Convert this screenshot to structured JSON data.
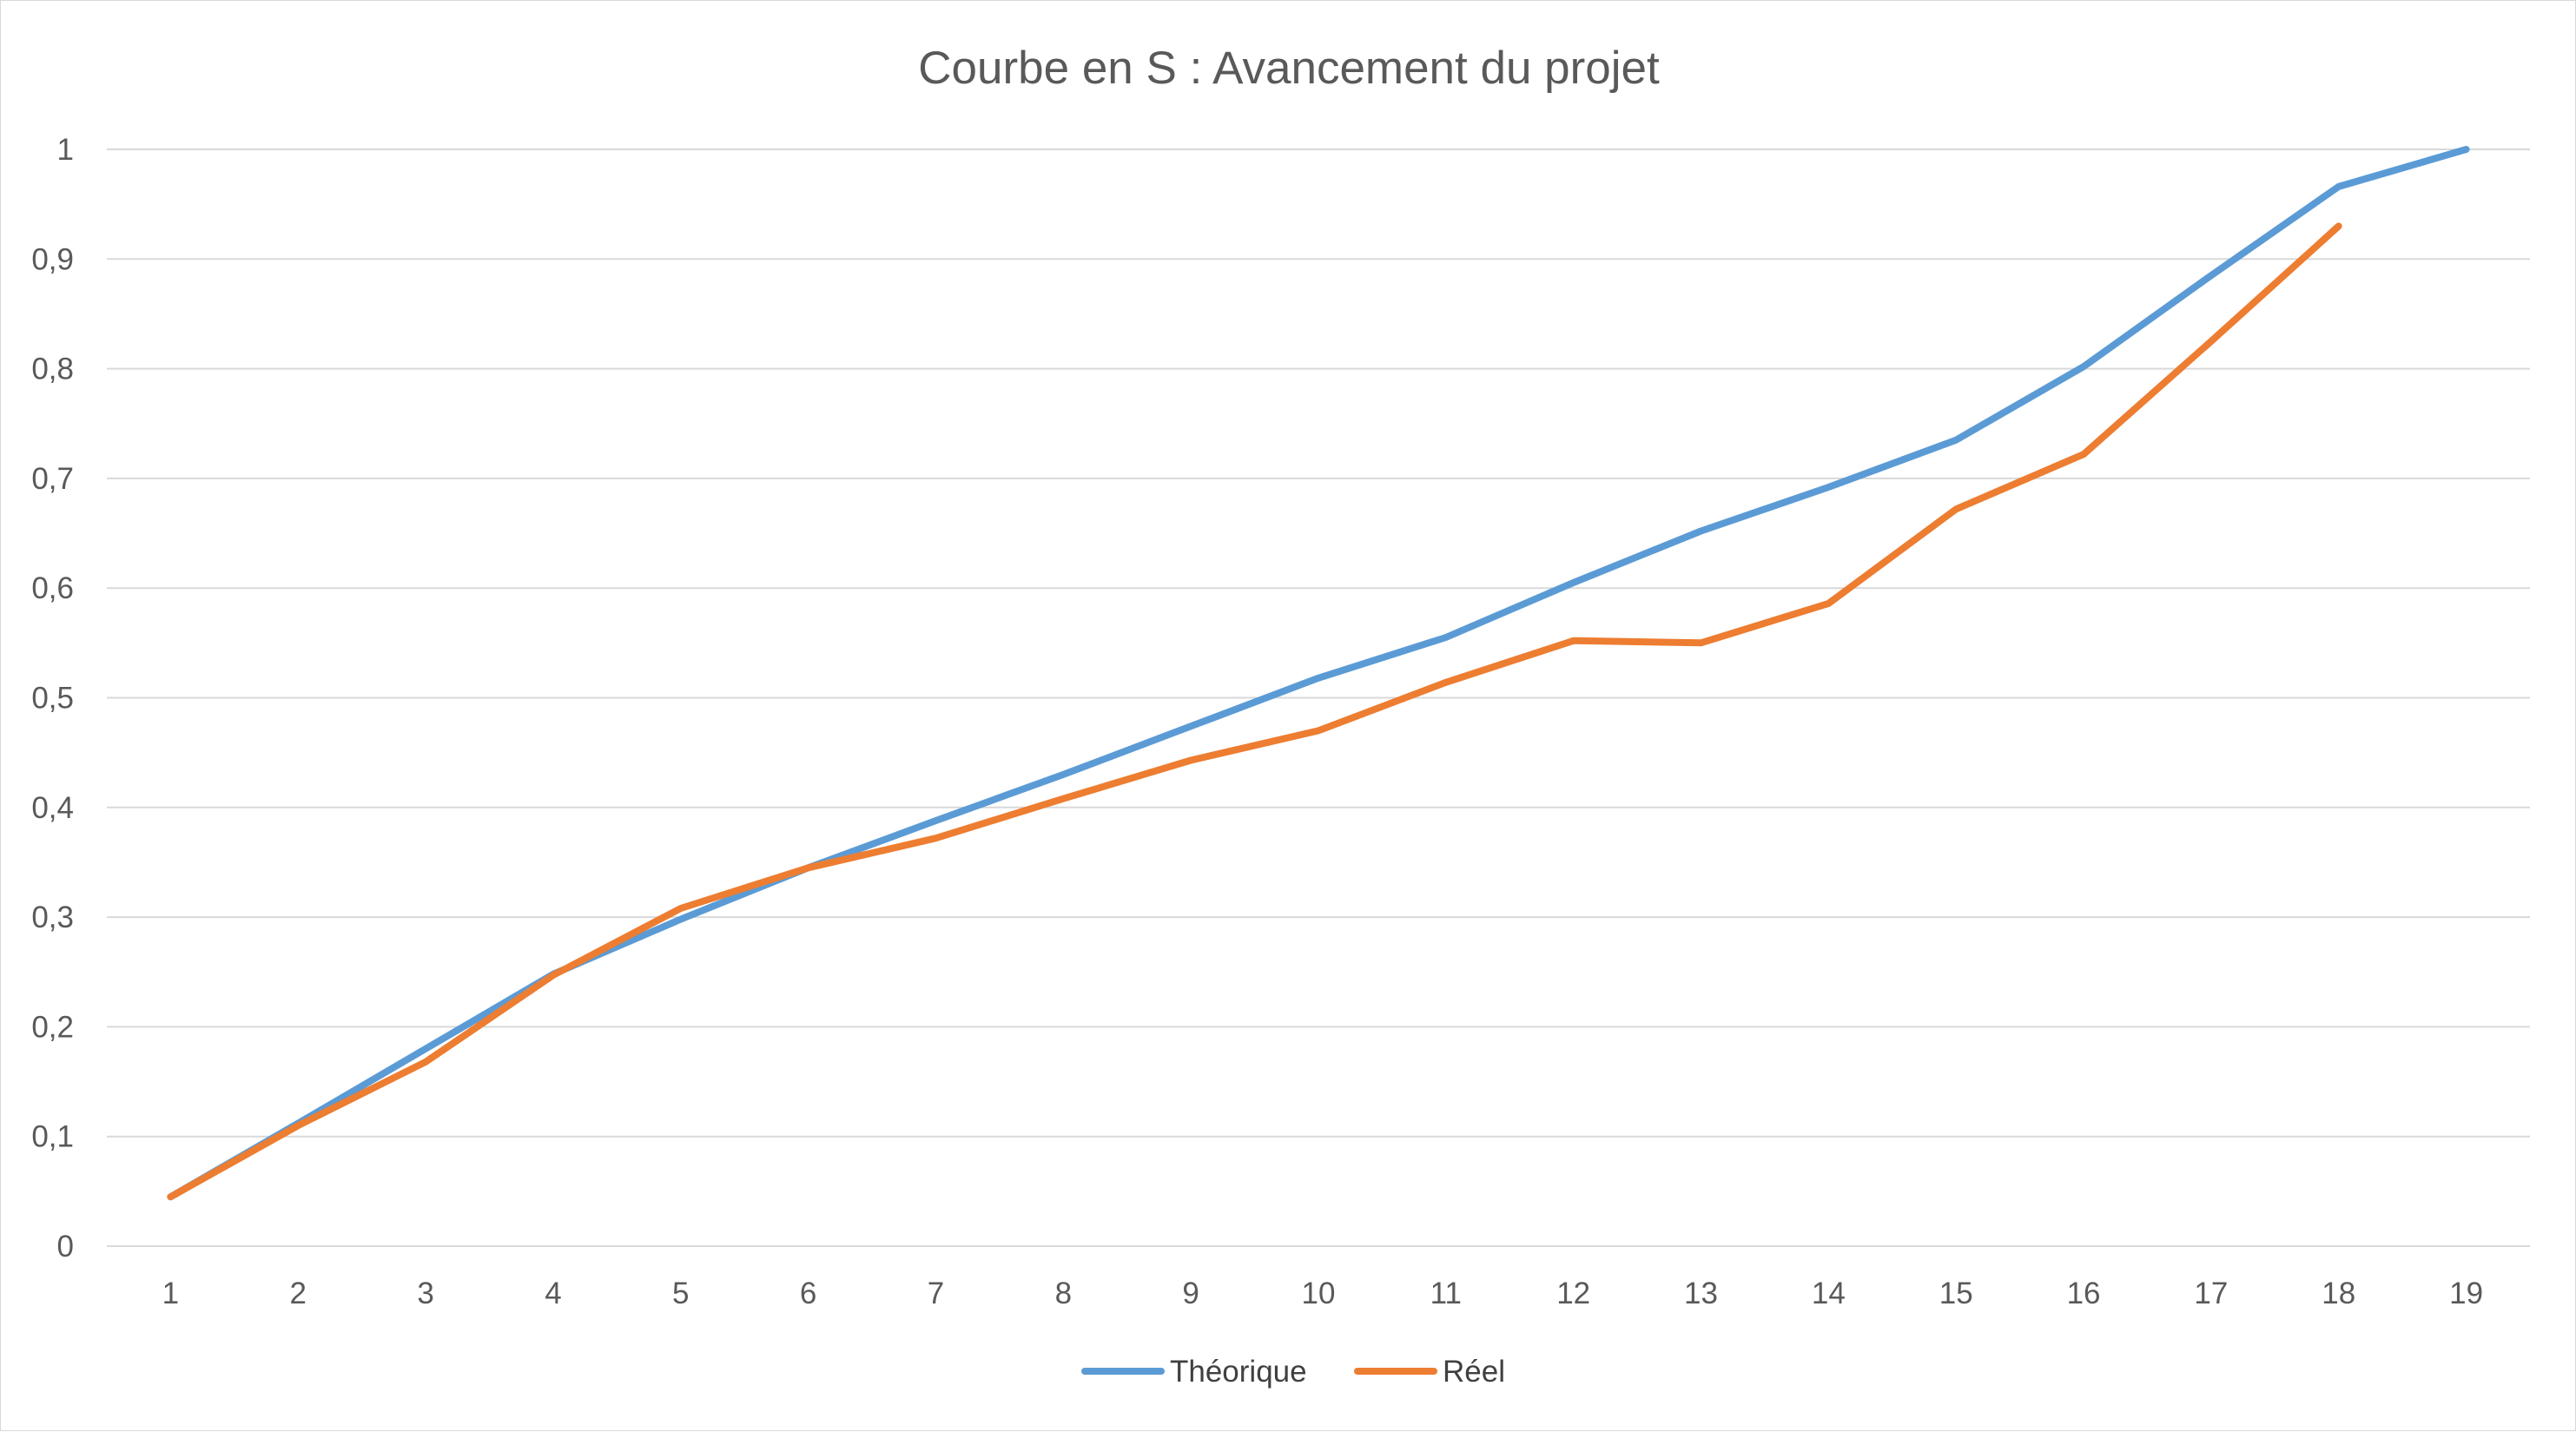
{
  "chart_data": {
    "type": "line",
    "title": "Courbe en S : Avancement du projet",
    "xlabel": "",
    "ylabel": "",
    "categories": [
      "1",
      "2",
      "3",
      "4",
      "5",
      "6",
      "7",
      "8",
      "9",
      "10",
      "11",
      "12",
      "13",
      "14",
      "15",
      "16",
      "17",
      "18",
      "19"
    ],
    "ylim": [
      0,
      1
    ],
    "yticks": [
      "0",
      "0,1",
      "0,2",
      "0,3",
      "0,4",
      "0,5",
      "0,6",
      "0,7",
      "0,8",
      "0,9",
      "1"
    ],
    "grid": true,
    "legend_position": "bottom",
    "series": [
      {
        "name": "Théorique",
        "color": "#5b9bd5",
        "values": [
          0.045,
          0.112,
          0.18,
          0.248,
          0.298,
          0.345,
          0.388,
          0.43,
          0.474,
          0.518,
          0.555,
          0.605,
          0.652,
          0.692,
          0.735,
          0.802,
          0.885,
          0.966,
          1.0
        ]
      },
      {
        "name": "Réel",
        "color": "#ed7d31",
        "values": [
          0.045,
          0.11,
          0.168,
          0.247,
          0.308,
          0.345,
          0.372,
          0.408,
          0.443,
          0.47,
          0.514,
          0.552,
          0.55,
          0.586,
          0.672,
          0.722,
          0.825,
          0.93,
          null
        ]
      }
    ]
  }
}
